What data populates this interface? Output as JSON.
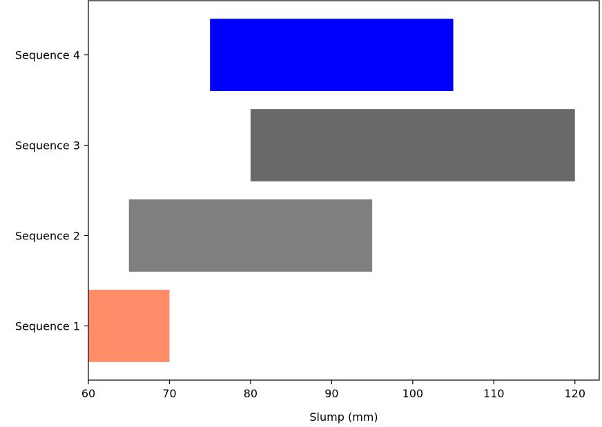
{
  "chart_data": {
    "type": "bar",
    "orientation": "horizontal",
    "title": "",
    "xlabel": "Slump (mm)",
    "ylabel": "",
    "xlim": [
      60,
      123
    ],
    "xticks": [
      "60",
      "70",
      "80",
      "90",
      "100",
      "110",
      "120"
    ],
    "grid": false,
    "legend": "none",
    "categories": [
      "Sequence 1",
      "Sequence 2",
      "Sequence 3",
      "Sequence 4"
    ],
    "bars": [
      {
        "category": "Sequence 1",
        "start": 60,
        "end": 70,
        "color": "#ff8c69"
      },
      {
        "category": "Sequence 2",
        "start": 65,
        "end": 95,
        "color": "#808080"
      },
      {
        "category": "Sequence 3",
        "start": 80,
        "end": 120,
        "color": "#696969"
      },
      {
        "category": "Sequence 4",
        "start": 75,
        "end": 105,
        "color": "#0000ff"
      }
    ]
  }
}
